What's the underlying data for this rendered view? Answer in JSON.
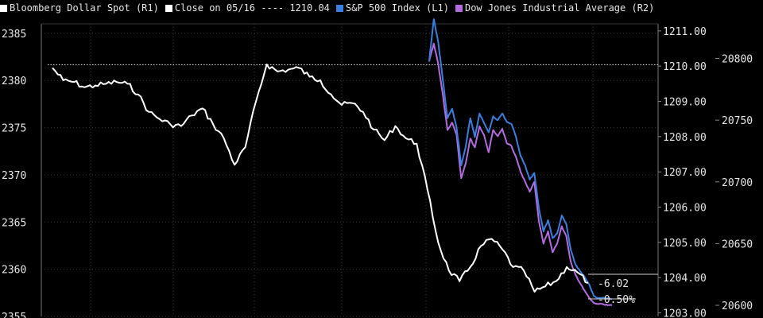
{
  "chart_data": {
    "type": "line",
    "legend": [
      {
        "label": "Bloomberg Dollar Spot  (R1)",
        "color": "#ffffff",
        "icon": "white-square"
      },
      {
        "label": "Close on 05/16 ---- 1210.04",
        "color": "#ffffff",
        "icon": "white-square"
      },
      {
        "label": "S&P 500 Index  (L1)",
        "color": "#3a7fe0",
        "icon": "blue-square"
      },
      {
        "label": "Dow Jones Industrial Average  (R2)",
        "color": "#b46be0",
        "icon": "purple-square"
      }
    ],
    "axes": {
      "left": {
        "min": 2355,
        "max": 2386,
        "ticks": [
          "2385",
          "2380",
          "2375",
          "2370",
          "2365",
          "2360",
          "2355"
        ],
        "values": [
          2385,
          2380,
          2375,
          2370,
          2365,
          2360,
          2355
        ]
      },
      "right1": {
        "min": 1202.9,
        "max": 1211.2,
        "ticks": [
          "1211.00",
          "1210.00",
          "1209.00",
          "1208.00",
          "1207.00",
          "1206.00",
          "1205.00",
          "1204.00",
          "1203.00"
        ],
        "values": [
          1211,
          1210,
          1209,
          1208,
          1207,
          1206,
          1205,
          1204,
          1203
        ]
      },
      "right2": {
        "min": 20591,
        "max": 20828,
        "ticks": [
          "20800",
          "20750",
          "20700",
          "20650",
          "20600"
        ],
        "values": [
          20800,
          20750,
          20700,
          20650,
          20600
        ]
      }
    },
    "close_reference": 1210.04,
    "annotations": [
      "-6.02",
      "-0.50%"
    ],
    "series": [
      {
        "name": "Bloomberg Dollar Spot",
        "axis": "right1",
        "color": "#ffffff",
        "x": [
          0,
          2,
          4,
          6,
          8,
          10,
          12,
          14,
          16,
          18,
          20,
          22,
          24,
          26,
          28,
          30,
          32,
          34,
          36,
          38,
          40,
          42,
          44,
          46,
          48,
          50,
          52,
          54,
          56,
          58,
          60,
          62,
          64,
          66,
          68,
          70,
          72,
          74,
          76,
          78,
          80,
          82,
          84,
          86,
          88,
          90,
          92,
          94,
          96,
          98,
          100
        ],
        "values": [
          1209.95,
          1209.6,
          1209.55,
          1209.4,
          1209.45,
          1209.5,
          1209.55,
          1209.5,
          1209.2,
          1208.7,
          1208.5,
          1208.35,
          1208.3,
          1208.6,
          1208.8,
          1208.35,
          1207.95,
          1207.2,
          1207.7,
          1209.0,
          1210.05,
          1209.85,
          1209.9,
          1209.95,
          1209.7,
          1209.6,
          1209.2,
          1208.9,
          1208.95,
          1208.7,
          1208.2,
          1207.9,
          1208.3,
          1207.95,
          1207.8,
          1206.5,
          1205.0,
          1204.2,
          1203.9,
          1204.3,
          1204.9,
          1205.1,
          1204.8,
          1204.3,
          1204.2,
          1203.6,
          1203.75,
          1203.9,
          1204.3,
          1204.15,
          1203.85
        ]
      },
      {
        "name": "S&P 500 Index",
        "axis": "left",
        "color": "#3a7fe0",
        "x": [
          0,
          1,
          2,
          3,
          4,
          5,
          6,
          7,
          8,
          9,
          10,
          11,
          12,
          13,
          14,
          15,
          16,
          17,
          18,
          19,
          20,
          21,
          22,
          23,
          24,
          25,
          26,
          27,
          28,
          29,
          30,
          31,
          32,
          33,
          34,
          35,
          36,
          37,
          38,
          39,
          40
        ],
        "values": [
          2382,
          2386.5,
          2384,
          2380,
          2376,
          2377,
          2375,
          2371,
          2373,
          2376,
          2374,
          2376.5,
          2375.5,
          2374.5,
          2376.2,
          2375.8,
          2376.5,
          2375.6,
          2375.4,
          2374,
          2372,
          2371,
          2369.5,
          2370.2,
          2366.5,
          2364,
          2365.2,
          2363.3,
          2363.8,
          2365.7,
          2364.8,
          2362,
          2360.5,
          2359.8,
          2359.2,
          2358.4,
          2357.2,
          2356.9,
          2357.0,
          2356.9,
          2356.8
        ]
      },
      {
        "name": "Dow Jones Industrial Average",
        "axis": "right2",
        "color": "#b46be0",
        "x": [
          0,
          1,
          2,
          3,
          4,
          5,
          6,
          7,
          8,
          9,
          10,
          11,
          12,
          13,
          14,
          15,
          16,
          17,
          18,
          19,
          20,
          21,
          22,
          23,
          24,
          25,
          26,
          27,
          28,
          29,
          30,
          31,
          32,
          33,
          34,
          35,
          36,
          37,
          38,
          39,
          40
        ],
        "values": [
          20798,
          20812,
          20795,
          20770,
          20742,
          20748,
          20738,
          20703,
          20715,
          20735,
          20728,
          20745,
          20738,
          20724,
          20742,
          20737,
          20743,
          20731,
          20729,
          20720,
          20708,
          20700,
          20692,
          20700,
          20668,
          20650,
          20660,
          20643,
          20650,
          20664,
          20656,
          20635,
          20625,
          20618,
          20612,
          20606,
          20602,
          20601,
          20601,
          20600,
          20600
        ]
      }
    ]
  }
}
